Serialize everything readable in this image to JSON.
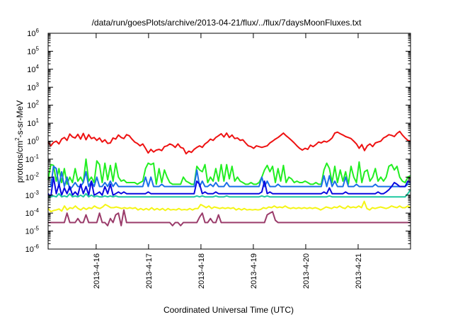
{
  "chart_data": {
    "type": "line",
    "title": "/data/run/goesPlots/archive/2013-04-21/flux/../flux/7daysMoonFluxes.txt",
    "xlabel": "Coordinated Universal Time (UTC)",
    "ylabel": {
      "pre": "protons/cm",
      "sup": "2",
      "post": "-s-sr-MeV"
    },
    "y_scale": "log",
    "ylim": [
      1e-06,
      1000000.0
    ],
    "xlim": [
      "2013-04-15T02:00",
      "2013-04-22T00:00"
    ],
    "y_ticks": [
      {
        "exp": "-6",
        "value": 1e-06
      },
      {
        "exp": "-5",
        "value": 1e-05
      },
      {
        "exp": "-4",
        "value": 0.0001
      },
      {
        "exp": "-3",
        "value": 0.001
      },
      {
        "exp": "-2",
        "value": 0.01
      },
      {
        "exp": "-1",
        "value": 0.1
      },
      {
        "exp": "0",
        "value": 1
      },
      {
        "exp": "1",
        "value": 10
      },
      {
        "exp": "2",
        "value": 100
      },
      {
        "exp": "3",
        "value": 1000
      },
      {
        "exp": "4",
        "value": 10000
      },
      {
        "exp": "5",
        "value": 100000
      },
      {
        "exp": "6",
        "value": 1000000
      }
    ],
    "y_tick_base": "10",
    "x_ticks": [
      {
        "label": "2013-4-16",
        "date": "2013-04-16"
      },
      {
        "label": "2013-4-17",
        "date": "2013-04-17"
      },
      {
        "label": "2013-4-18",
        "date": "2013-04-18"
      },
      {
        "label": "2013-4-19",
        "date": "2013-04-19"
      },
      {
        "label": "2013-4-20",
        "date": "2013-04-20"
      },
      {
        "label": "2013-4-21",
        "date": "2013-04-21"
      }
    ],
    "grid": false,
    "legend": "none",
    "series": [
      {
        "color": "#ee1111",
        "width": 2,
        "values": [
          0.9,
          0.55,
          0.85,
          1,
          0.7,
          1.3,
          1.6,
          1.1,
          2.5,
          1.7,
          1.5,
          2.4,
          1.3,
          2.7,
          1.2,
          2.3,
          1.4,
          1.6,
          1.1,
          1.5,
          0.9,
          1.2,
          0.75,
          0.8,
          1.5,
          1.3,
          2.2,
          1.6,
          1.4,
          2.3,
          2,
          1.3,
          0.9,
          0.75,
          0.55,
          0.7,
          0.4,
          0.22,
          0.35,
          0.25,
          0.32,
          0.35,
          0.3,
          0.5,
          0.55,
          0.7,
          0.6,
          0.45,
          0.7,
          0.45,
          0.4,
          0.2,
          0.28,
          0.24,
          0.35,
          0.45,
          0.55,
          0.45,
          0.7,
          0.9,
          1.3,
          1.1,
          1.6,
          2,
          2.6,
          1.7,
          2.8,
          1.6,
          2.2,
          1.4,
          1.5,
          1.1,
          1.2,
          0.8,
          0.55,
          0.5,
          0.4,
          0.55,
          0.5,
          0.45,
          0.5,
          0.55,
          0.8,
          1,
          1.3,
          1.6,
          2.1,
          2.8,
          2,
          1.5,
          1.1,
          0.8,
          0.55,
          0.4,
          0.32,
          0.4,
          0.35,
          0.6,
          0.5,
          0.65,
          0.9,
          0.8,
          1,
          0.9,
          1.1,
          1.5,
          2.8,
          3.2,
          2.6,
          2.2,
          1.8,
          1.6,
          1.4,
          1,
          0.7,
          0.4,
          0.65,
          0.3,
          0.55,
          0.7,
          0.5,
          0.8,
          0.9,
          1,
          1.5,
          1.8,
          2.3,
          2.1,
          1.8,
          2.7,
          3.5,
          2.2,
          1.5,
          1.1,
          1
        ]
      },
      {
        "color": "#22ee22",
        "width": 2,
        "values": [
          0.007,
          0.05,
          0.045,
          0.006,
          0.03,
          0.005,
          0.03,
          0.004,
          0.01,
          0.005,
          0.03,
          0.006,
          0.01,
          0.005,
          0.1,
          0.006,
          0.01,
          0.005,
          0.08,
          0.05,
          0.005,
          0.06,
          0.007,
          0.045,
          0.006,
          0.06,
          0.01,
          0.006,
          0.007,
          0.005,
          0.005,
          0.005,
          0.005,
          0.004,
          0.005,
          0.006,
          0.03,
          0.06,
          0.05,
          0.06,
          0.004,
          0.03,
          0.005,
          0.025,
          0.01,
          0.005,
          0.004,
          0.004,
          0.004,
          0.004,
          0.01,
          0.006,
          0.005,
          0.004,
          0.004,
          0.04,
          0.025,
          0.02,
          0.05,
          0.005,
          0.01,
          0.006,
          0.03,
          0.006,
          0.05,
          0.006,
          0.05,
          0.008,
          0.04,
          0.006,
          0.01,
          0.006,
          0.005,
          0.004,
          0.004,
          0.005,
          0.004,
          0.004,
          0.005,
          0.01,
          0.025,
          0.045,
          0.02,
          0.04,
          0.005,
          0.03,
          0.006,
          0.045,
          0.005,
          0.01,
          0.008,
          0.005,
          0.006,
          0.005,
          0.005,
          0.006,
          0.005,
          0.004,
          0.004,
          0.005,
          0.004,
          0.004,
          0.025,
          0.06,
          0.03,
          0.005,
          0.04,
          0.005,
          0.025,
          0.006,
          0.02,
          0.004,
          0.04,
          0.01,
          0.005,
          0.07,
          0.005,
          0.02,
          0.025,
          0.006,
          0.01,
          0.03,
          0.006,
          0.01,
          0.006,
          0.01,
          0.04,
          0.05,
          0.025,
          0.04,
          0.01,
          0.006,
          0.005,
          0.01,
          0.012
        ]
      },
      {
        "color": "#1a6fe8",
        "width": 2,
        "values": [
          0.003,
          0.003,
          0.04,
          0.03,
          0.003,
          0.02,
          0.003,
          0.01,
          0.002,
          0.003,
          0.005,
          0.003,
          0.003,
          0.005,
          0.02,
          0.003,
          0.006,
          0.003,
          0.01,
          0.003,
          0.003,
          0.005,
          0.003,
          0.006,
          0.003,
          0.005,
          0.003,
          0.003,
          0.003,
          0.003,
          0.003,
          0.003,
          0.003,
          0.003,
          0.003,
          0.003,
          0.01,
          0.003,
          0.01,
          0.003,
          0.003,
          0.003,
          0.004,
          0.003,
          0.003,
          0.003,
          0.003,
          0.003,
          0.003,
          0.003,
          0.003,
          0.003,
          0.003,
          0.003,
          0.003,
          0.025,
          0.003,
          0.006,
          0.003,
          0.003,
          0.004,
          0.003,
          0.005,
          0.003,
          0.003,
          0.003,
          0.005,
          0.003,
          0.003,
          0.003,
          0.003,
          0.003,
          0.003,
          0.003,
          0.003,
          0.003,
          0.003,
          0.003,
          0.003,
          0.01,
          0.003,
          0.006,
          0.003,
          0.003,
          0.003,
          0.004,
          0.003,
          0.003,
          0.003,
          0.003,
          0.003,
          0.003,
          0.003,
          0.003,
          0.003,
          0.003,
          0.003,
          0.003,
          0.003,
          0.003,
          0.003,
          0.003,
          0.012,
          0.003,
          0.012,
          0.003,
          0.006,
          0.003,
          0.003,
          0.003,
          0.01,
          0.003,
          0.003,
          0.003,
          0.004,
          0.003,
          0.003,
          0.003,
          0.003,
          0.003,
          0.003,
          0.004,
          0.003,
          0.003,
          0.003,
          0.003,
          0.003,
          0.003,
          0.003,
          0.003,
          0.003,
          0.003,
          0.003,
          0.004,
          0.004
        ]
      },
      {
        "color": "#0a0ae0",
        "width": 2,
        "values": [
          0.0012,
          0.0008,
          0.01,
          0.0012,
          0.004,
          0.001,
          0.0025,
          0.0012,
          0.003,
          0.001,
          0.0015,
          0.001,
          0.004,
          0.0012,
          0.003,
          0.001,
          0.006,
          0.001,
          0.0012,
          0.0015,
          0.001,
          0.003,
          0.0012,
          0.004,
          0.001,
          0.0012,
          0.0015,
          0.0012,
          0.0015,
          0.0012,
          0.0012,
          0.0012,
          0.0012,
          0.0012,
          0.0012,
          0.0012,
          0.0012,
          0.0015,
          0.0012,
          0.0012,
          0.0012,
          0.0012,
          0.0012,
          0.0012,
          0.0012,
          0.0012,
          0.0012,
          0.0012,
          0.0012,
          0.0012,
          0.0012,
          0.0012,
          0.0012,
          0.0012,
          0.0012,
          0.006,
          0.004,
          0.0012,
          0.0015,
          0.0012,
          0.0012,
          0.0012,
          0.0015,
          0.0012,
          0.0012,
          0.0012,
          0.0012,
          0.0012,
          0.0012,
          0.0012,
          0.0012,
          0.0012,
          0.0012,
          0.0012,
          0.0012,
          0.0012,
          0.0012,
          0.0012,
          0.0012,
          0.0015,
          0.006,
          0.0012,
          0.0015,
          0.0012,
          0.0012,
          0.0012,
          0.0012,
          0.0012,
          0.0012,
          0.0012,
          0.0012,
          0.0012,
          0.0012,
          0.0012,
          0.0012,
          0.0012,
          0.0012,
          0.0012,
          0.0012,
          0.0012,
          0.0012,
          0.0012,
          0.0015,
          0.0012,
          0.0025,
          0.0012,
          0.0012,
          0.0012,
          0.0012,
          0.0012,
          0.0015,
          0.0012,
          0.0012,
          0.0012,
          0.0012,
          0.0012,
          0.0012,
          0.0012,
          0.0012,
          0.0012,
          0.0012,
          0.0012,
          0.0015,
          0.0012,
          0.0012,
          0.0015,
          0.002,
          0.003,
          0.005,
          0.004,
          0.003,
          0.003,
          0.003,
          0.006,
          0.005
        ]
      },
      {
        "color": "#1ec8a0",
        "width": 2,
        "values": [
          0.0008,
          0.0008,
          0.0009,
          0.0008,
          0.0012,
          0.0008,
          0.0009,
          0.0008,
          0.0012,
          0.0008,
          0.0009,
          0.0008,
          0.001,
          0.0008,
          0.0012,
          0.0008,
          0.001,
          0.0008,
          0.0009,
          0.0008,
          0.0008,
          0.0009,
          0.0008,
          0.0009,
          0.0008,
          0.0009,
          0.0008,
          0.0008,
          0.0008,
          0.0008,
          0.0008,
          0.0008,
          0.0008,
          0.0008,
          0.0008,
          0.0008,
          0.0008,
          0.0008,
          0.0008,
          0.0008,
          0.0008,
          0.0008,
          0.0008,
          0.0008,
          0.0008,
          0.0008,
          0.0008,
          0.0008,
          0.0008,
          0.0008,
          0.0008,
          0.0008,
          0.0008,
          0.0008,
          0.0008,
          0.0009,
          0.0008,
          0.0009,
          0.0008,
          0.0008,
          0.0008,
          0.0008,
          0.0009,
          0.0008,
          0.0008,
          0.0008,
          0.0009,
          0.0008,
          0.0008,
          0.0008,
          0.0008,
          0.0008,
          0.0008,
          0.0008,
          0.0008,
          0.0008,
          0.0008,
          0.0008,
          0.0008,
          0.0009,
          0.0008,
          0.0009,
          0.0008,
          0.0008,
          0.0008,
          0.0008,
          0.0008,
          0.0008,
          0.0008,
          0.0008,
          0.0008,
          0.0008,
          0.0008,
          0.0008,
          0.0008,
          0.0008,
          0.0008,
          0.0008,
          0.0008,
          0.0008,
          0.0008,
          0.0008,
          0.0008,
          0.0008,
          0.0009,
          0.0008,
          0.0008,
          0.0008,
          0.0008,
          0.0008,
          0.0008,
          0.0008,
          0.0008,
          0.0008,
          0.0008,
          0.0008,
          0.0008,
          0.0008,
          0.0008,
          0.0008,
          0.0008,
          0.0008,
          0.0008,
          0.0008,
          0.0008,
          0.0008,
          0.0008,
          0.0008,
          0.0008,
          0.0008,
          0.0008,
          0.0008,
          0.0008,
          0.0012,
          0.002
        ]
      },
      {
        "color": "#f5f516",
        "width": 2,
        "values": [
          0.00018,
          0.00012,
          0.00014,
          0.00015,
          0.00017,
          0.00013,
          0.00025,
          0.00015,
          0.0002,
          0.00018,
          0.00025,
          0.00018,
          0.00015,
          0.0002,
          0.00016,
          0.0002,
          0.00018,
          0.00025,
          0.0002,
          0.00018,
          0.00022,
          0.0003,
          0.00025,
          0.0002,
          0.0002,
          0.00022,
          0.0002,
          0.00018,
          0.0002,
          0.00018,
          0.0002,
          0.00018,
          0.0002,
          0.00015,
          0.00018,
          0.00015,
          0.00018,
          0.00015,
          0.0002,
          0.00015,
          0.00018,
          0.00015,
          0.00018,
          0.00014,
          0.00018,
          0.00015,
          0.00016,
          0.00015,
          0.00018,
          0.00015,
          0.00016,
          0.00015,
          0.00018,
          0.00015,
          0.00018,
          0.00018,
          0.0003,
          0.00025,
          0.0002,
          0.00025,
          0.00018,
          0.00022,
          0.0002,
          0.00018,
          0.0002,
          0.00018,
          0.0002,
          0.00018,
          0.0002,
          0.00015,
          0.00018,
          0.00015,
          0.00018,
          0.00015,
          0.00016,
          0.00015,
          0.00016,
          0.00015,
          0.00016,
          0.0002,
          0.00018,
          0.00022,
          0.0002,
          0.00025,
          0.0002,
          0.00022,
          0.0002,
          0.00025,
          0.0002,
          0.00018,
          0.0002,
          0.00018,
          0.0002,
          0.00018,
          0.0002,
          0.00018,
          0.0002,
          0.00018,
          0.0002,
          0.00018,
          0.00015,
          0.00018,
          0.00022,
          0.0002,
          0.00018,
          0.00022,
          0.0002,
          0.00025,
          0.0002,
          0.00018,
          0.00025,
          0.0002,
          0.00022,
          0.0002,
          0.00025,
          0.0002,
          0.00045,
          0.00018,
          0.00015,
          0.0002,
          0.00018,
          0.0002,
          0.00022,
          0.0002,
          0.00018,
          0.0002,
          0.00025,
          0.00022,
          0.0002,
          0.00025,
          0.0002,
          0.0002,
          0.00025,
          0.0002
        ]
      },
      {
        "color": "#9a3b6a",
        "width": 2,
        "values": [
          3e-05,
          3e-05,
          3e-05,
          3e-05,
          3e-05,
          3e-05,
          3e-05,
          0.0001,
          3e-05,
          3e-05,
          3e-05,
          5e-05,
          3e-05,
          3e-05,
          8e-05,
          3e-05,
          3e-05,
          3e-05,
          3e-05,
          0.0001,
          3e-05,
          3e-05,
          2e-05,
          5e-05,
          3e-05,
          8e-05,
          0.0001,
          2e-05,
          0.00015,
          3e-05,
          3e-05,
          3e-05,
          3e-05,
          3e-05,
          3e-05,
          3e-05,
          3e-05,
          3e-05,
          3e-05,
          3e-05,
          3e-05,
          3e-05,
          3e-05,
          3e-05,
          3e-05,
          3e-05,
          2e-05,
          3e-05,
          3e-05,
          2e-05,
          3e-05,
          3e-05,
          3e-05,
          3e-05,
          3e-05,
          3e-05,
          6e-05,
          0.0001,
          3e-05,
          3e-05,
          5e-05,
          3e-05,
          3e-05,
          8e-05,
          3e-05,
          3e-05,
          3e-05,
          3e-05,
          3e-05,
          3e-05,
          3e-05,
          3e-05,
          3e-05,
          3e-05,
          3e-05,
          3e-05,
          3e-05,
          3e-05,
          3e-05,
          3e-05,
          3e-05,
          8e-05,
          0.0001,
          0.00012,
          4e-05,
          3e-05,
          3e-05,
          3e-05,
          3e-05,
          3e-05,
          3e-05,
          3e-05,
          3e-05,
          3e-05,
          3e-05,
          3e-05,
          3e-05,
          3e-05,
          3e-05,
          3e-05,
          3e-05,
          3e-05,
          3e-05,
          3e-05,
          3e-05,
          3e-05,
          3e-05,
          3e-05,
          3e-05,
          3e-05,
          3e-05,
          3e-05,
          3e-05,
          3e-05,
          3e-05,
          3e-05,
          3e-05,
          3e-05,
          3e-05,
          3e-05,
          3e-05,
          3e-05,
          3e-05,
          3e-05,
          3e-05,
          3e-05,
          3e-05,
          3e-05,
          3e-05,
          3e-05,
          3e-05,
          3e-05,
          3e-05,
          3e-05,
          3e-05
        ]
      }
    ]
  }
}
